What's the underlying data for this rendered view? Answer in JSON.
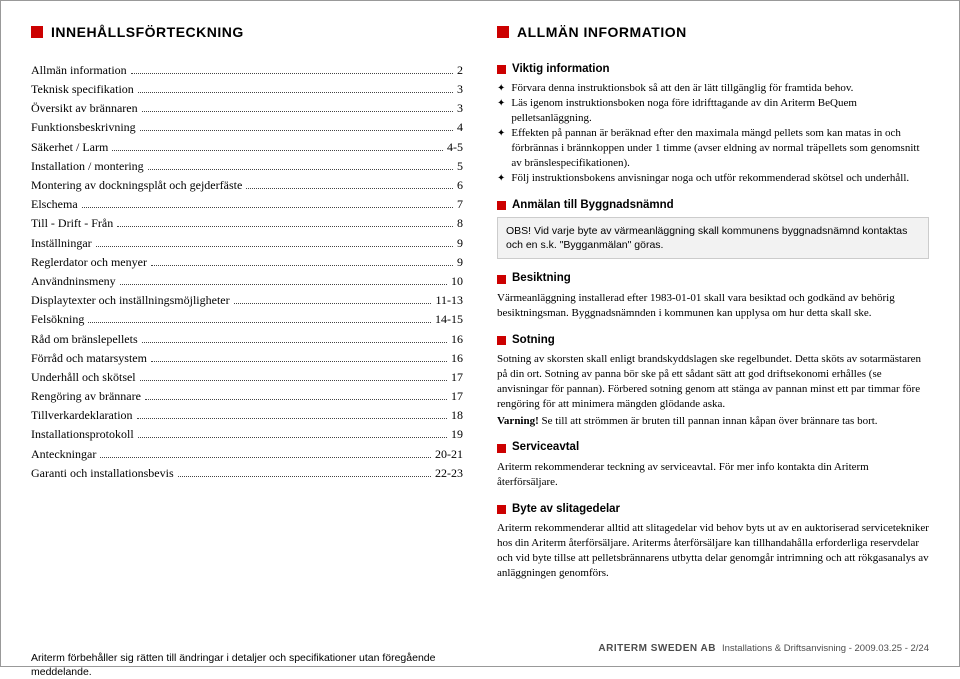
{
  "colors": {
    "accent": "#cc0000",
    "text": "#000000",
    "bg": "#ffffff",
    "notice_bg": "#f2f2f2",
    "notice_border": "#cccccc",
    "footer": "#4d4d4d",
    "dots": "#444444"
  },
  "typography": {
    "body_family": "Times New Roman",
    "ui_family": "Arial",
    "body_size_pt": 11,
    "heading_size_pt": 14,
    "sub_heading_size_pt": 11.5
  },
  "left": {
    "title": "INNEHÅLLSFÖRTECKNING",
    "toc": [
      {
        "label": "Allmän information",
        "page": "2"
      },
      {
        "label": "Teknisk specifikation",
        "page": "3"
      },
      {
        "label": "Översikt av brännaren",
        "page": "3"
      },
      {
        "label": "Funktionsbeskrivning",
        "page": "4"
      },
      {
        "label": "Säkerhet / Larm",
        "page": "4-5"
      },
      {
        "label": "Installation / montering",
        "page": "5"
      },
      {
        "label": "Montering av dockningsplåt och gejderfäste",
        "page": "6"
      },
      {
        "label": "Elschema",
        "page": "7"
      },
      {
        "label": "Till - Drift - Från",
        "page": "8"
      },
      {
        "label": "Inställningar",
        "page": "9"
      },
      {
        "label": "Reglerdator och menyer",
        "page": "9"
      },
      {
        "label": "Användninsmeny",
        "page": "10"
      },
      {
        "label": "Displaytexter och inställningsmöjligheter",
        "page": "11-13"
      },
      {
        "label": "Felsökning",
        "page": "14-15"
      },
      {
        "label": "Råd om bränslepellets",
        "page": "16"
      },
      {
        "label": "Förråd och matarsystem",
        "page": "16"
      },
      {
        "label": "Underhåll och skötsel",
        "page": "17"
      },
      {
        "label": "Rengöring av brännare",
        "page": "17"
      },
      {
        "label": "Tillverkardeklaration",
        "page": "18"
      },
      {
        "label": "Installationsprotokoll",
        "page": "19"
      },
      {
        "label": "Anteckningar",
        "page": "20-21"
      },
      {
        "label": "Garanti och installationsbevis",
        "page": "22-23"
      }
    ],
    "disclaimer": "Ariterm förbehåller sig rätten till ändringar i detaljer och specifikationer utan föregående meddelande."
  },
  "right": {
    "title": "ALLMÄN INFORMATION",
    "sections": {
      "viktig": {
        "title": "Viktig information",
        "bullets": [
          "Förvara denna instruktionsbok så att den är lätt tillgänglig för framtida behov.",
          "Läs igenom instruktionsboken noga före idrifttagande av din Ariterm BeQuem pelletsanläggning.",
          "Effekten på pannan är beräknad efter den maximala mängd pellets som kan matas in och förbrännas i brännkoppen under 1 timme (avser eldning av normal träpellets som genomsnitt av bränslespecifikationen).",
          "Följ instruktionsbokens anvisningar noga och utför rekommenderad skötsel och underhåll."
        ]
      },
      "anmalan": {
        "title": "Anmälan till Byggnadsnämnd",
        "notice": "OBS! Vid varje byte av värmeanläggning skall kommunens byggnadsnämnd kontaktas och en s.k. \"Bygganmälan\" göras."
      },
      "besiktning": {
        "title": "Besiktning",
        "body": "Värmeanläggning installerad efter 1983-01-01 skall vara besiktad och godkänd av behörig besiktningsman. Byggnadsnämnden i kommunen kan upplysa om hur detta skall ske."
      },
      "sotning": {
        "title": "Sotning",
        "body": "Sotning av skorsten skall enligt brandskyddslagen ske regelbundet. Detta sköts av sotarmästaren på din ort. Sotning av panna bör ske på ett sådant sätt att god driftsekonomi erhålles (se anvisningar för pannan). Förbered sotning genom att stänga av pannan minst ett par timmar före rengöring för att minimera mängden glödande aska.",
        "warning_label": "Varning!",
        "warning_body": " Se till att strömmen är bruten till pannan innan kåpan över brännare tas bort."
      },
      "serviceavtal": {
        "title": "Serviceavtal",
        "body": "Ariterm rekommenderar teckning av serviceavtal. För mer info kontakta din Ariterm återförsäljare."
      },
      "byte": {
        "title": "Byte av slitagedelar",
        "body": "Ariterm rekommenderar alltid att slitagedelar vid behov byts ut av en auktoriserad servicetekniker hos din Ariterm återförsäljare. Ariterms återförsäljare kan tillhandahålla erforderliga reservdelar och vid byte tillse att pelletsbrännarens utbytta delar genomgår intrimning och att rökgasanalys av anläggningen genomförs."
      }
    }
  },
  "footer": {
    "brand": "ARITERM SWEDEN AB",
    "text": "Installations & Driftsanvisning - 2009.03.25 - 2/24"
  }
}
